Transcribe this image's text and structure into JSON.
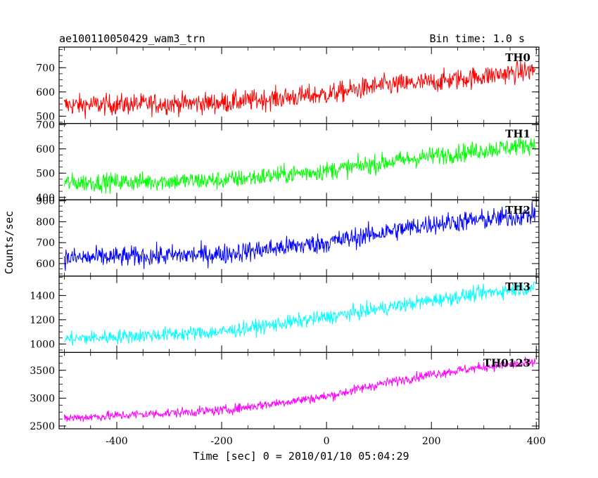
{
  "chart_data": {
    "type": "line",
    "title": "ae100110050429_wam3_trn",
    "subtitle": "Bin time: 1.0 s",
    "xlabel": "Time [sec] 0 = 2010/01/10 05:04:29",
    "ylabel": "Counts/sec",
    "xlim": [
      -510,
      405
    ],
    "x_ticks": [
      -400,
      -200,
      0,
      200,
      400
    ],
    "panels": [
      {
        "name": "TH0",
        "color": "#ff0000",
        "ylim": [
          470,
          785
        ],
        "y_ticks": [
          500,
          600,
          700
        ],
        "trend": [
          [
            -500,
            545
          ],
          [
            -200,
            555
          ],
          [
            0,
            590
          ],
          [
            100,
            625
          ],
          [
            200,
            640
          ],
          [
            300,
            665
          ],
          [
            400,
            690
          ]
        ],
        "noise": 40
      },
      {
        "name": "TH1",
        "color": "#00ff00",
        "ylim": [
          390,
          705
        ],
        "y_ticks": [
          400,
          500,
          600,
          700
        ],
        "trend": [
          [
            -500,
            460
          ],
          [
            -200,
            470
          ],
          [
            0,
            510
          ],
          [
            100,
            540
          ],
          [
            200,
            570
          ],
          [
            300,
            595
          ],
          [
            400,
            620
          ]
        ],
        "noise": 35
      },
      {
        "name": "TH2",
        "color": "#0000ff",
        "ylim": [
          540,
          905
        ],
        "y_ticks": [
          600,
          700,
          800,
          900
        ],
        "trend": [
          [
            -500,
            625
          ],
          [
            -200,
            645
          ],
          [
            0,
            700
          ],
          [
            100,
            745
          ],
          [
            200,
            790
          ],
          [
            300,
            810
          ],
          [
            400,
            835
          ]
        ],
        "noise": 45
      },
      {
        "name": "TH3",
        "color": "#00ffff",
        "ylim": [
          930,
          1560
        ],
        "y_ticks": [
          1000,
          1200,
          1400
        ],
        "trend": [
          [
            -500,
            1040
          ],
          [
            -200,
            1100
          ],
          [
            0,
            1220
          ],
          [
            100,
            1290
          ],
          [
            200,
            1360
          ],
          [
            300,
            1420
          ],
          [
            400,
            1470
          ]
        ],
        "noise": 55
      },
      {
        "name": "TH0123",
        "color": "#ff00ff",
        "ylim": [
          2450,
          3820
        ],
        "y_ticks": [
          2500,
          3000,
          3500
        ],
        "trend": [
          [
            -500,
            2640
          ],
          [
            -200,
            2780
          ],
          [
            0,
            3030
          ],
          [
            100,
            3250
          ],
          [
            200,
            3430
          ],
          [
            300,
            3560
          ],
          [
            400,
            3640
          ]
        ],
        "noise": 80
      }
    ]
  }
}
